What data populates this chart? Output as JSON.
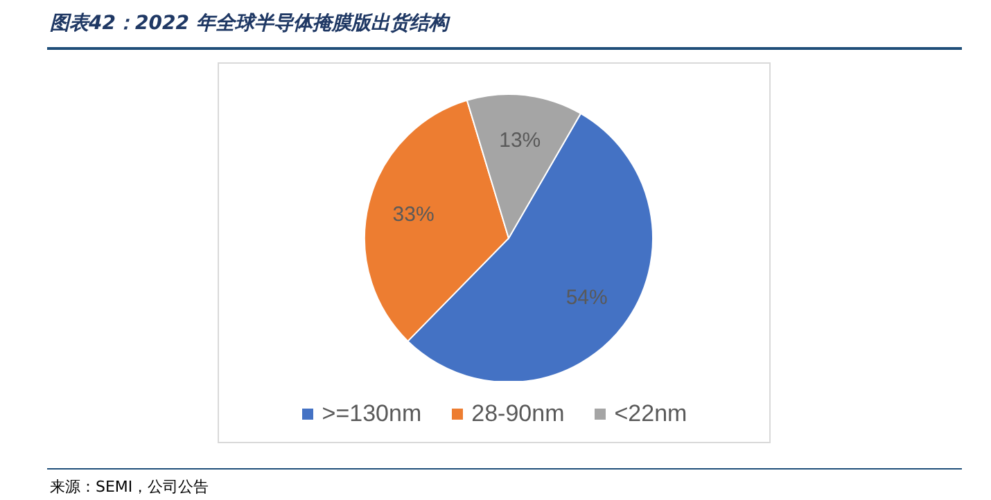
{
  "chart_data": {
    "type": "pie",
    "title": "图表42：2022 年全球半导体掩膜版出货结构",
    "categories": [
      ">=130nm",
      "28-90nm",
      "<22nm"
    ],
    "values": [
      54,
      33,
      13
    ],
    "colors": [
      "#4472c4",
      "#ed7d31",
      "#a5a5a5"
    ],
    "value_labels": [
      "54%",
      "33%",
      "13%"
    ],
    "legend": "bottom",
    "annotations": [
      "来源：SEMI，公司公告"
    ]
  }
}
